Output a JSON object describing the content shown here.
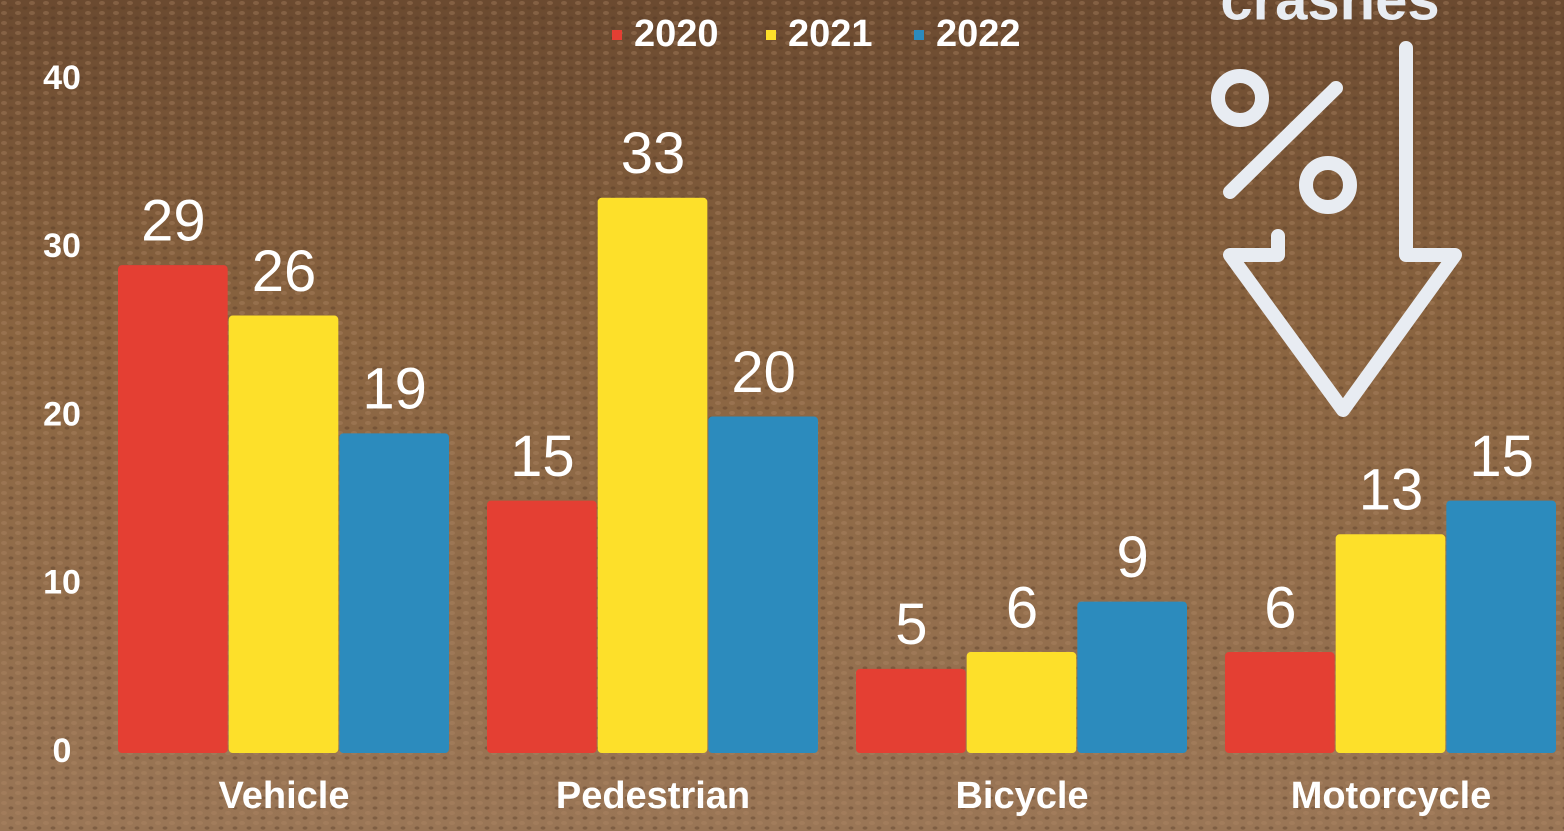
{
  "chart_data": {
    "type": "bar",
    "annotation": "crashes",
    "categories": [
      "Vehicle",
      "Pedestrian",
      "Bicycle",
      "Motorcycle"
    ],
    "series": [
      {
        "name": "2020",
        "color": "#e43f33",
        "values": [
          29,
          15,
          5,
          6
        ]
      },
      {
        "name": "2021",
        "color": "#fde02a",
        "values": [
          26,
          33,
          6,
          13
        ]
      },
      {
        "name": "2022",
        "color": "#2c8bbd",
        "values": [
          19,
          20,
          9,
          15
        ]
      }
    ],
    "ylim": [
      0,
      40
    ],
    "yticks": [
      0,
      10,
      20,
      30,
      40
    ],
    "grid": false,
    "legend": "top"
  }
}
